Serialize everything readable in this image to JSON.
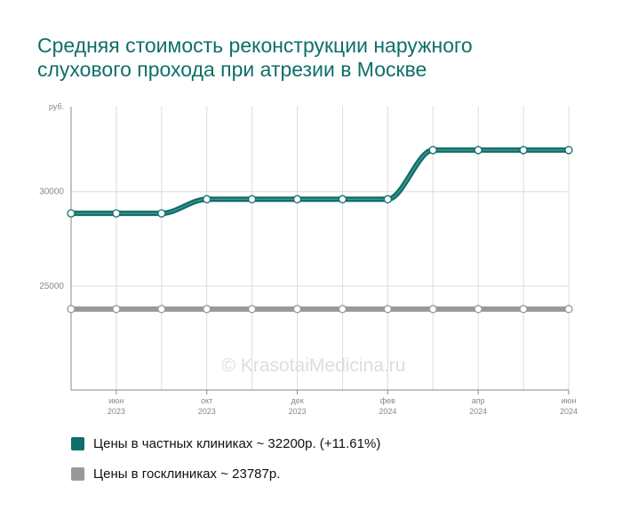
{
  "title": "Средняя стоимость реконструкции наружного слухового прохода при атрезии в Москве",
  "watermark": "© KrasotaiMedicina.ru",
  "chart_data": {
    "type": "line",
    "ylabel": "руб.",
    "y_ticks": [
      "30000",
      "25000"
    ],
    "ylim": [
      19500,
      34500
    ],
    "grid": true,
    "x_ticks": [
      {
        "month": "июн",
        "year": "2023"
      },
      {
        "month": "окт",
        "year": "2023"
      },
      {
        "month": "дек",
        "year": "2023"
      },
      {
        "month": "фев",
        "year": "2024"
      },
      {
        "month": "апр",
        "year": "2024"
      },
      {
        "month": "июн",
        "year": "2024"
      }
    ],
    "series": [
      {
        "name": "Цены в частных клиниках",
        "color": "#0f6f6a",
        "values": [
          28850,
          28850,
          28850,
          29600,
          29600,
          29600,
          29600,
          29600,
          32200,
          32200,
          32200,
          32200
        ]
      },
      {
        "name": "Цены в госклиниках",
        "color": "#999999",
        "values": [
          23787,
          23787,
          23787,
          23787,
          23787,
          23787,
          23787,
          23787,
          23787,
          23787,
          23787,
          23787
        ]
      }
    ]
  },
  "legend": [
    {
      "label": "Цены в частных клиниках ~ 32200р. (+11.61%)",
      "color": "#0f6f6a"
    },
    {
      "label": "Цены в госклиниках ~ 23787р.",
      "color": "#999999"
    }
  ]
}
